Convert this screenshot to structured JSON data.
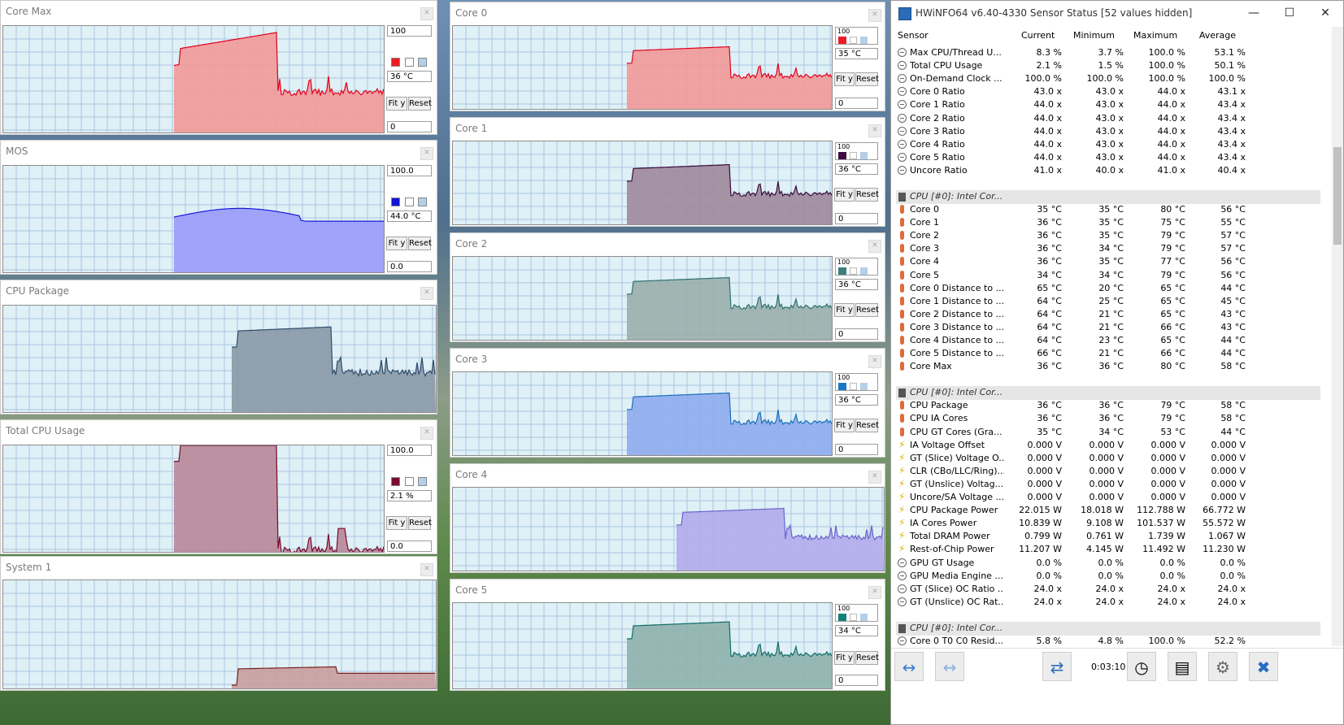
{
  "graphs": [
    {
      "title": "Core Max",
      "max": "100",
      "val": "36 °C",
      "min": "0",
      "color": "#f19a9a",
      "line": "#e0001b",
      "swatch": "#ee1b23"
    },
    {
      "title": "MOS",
      "max": "100.0",
      "val": "44.0 °C",
      "min": "0.0",
      "color": "#9a9cf8",
      "line": "#1b1bd8",
      "swatch": "#1414d8"
    },
    {
      "title": "CPU Package",
      "color": "#8a9aa8",
      "line": "#2f4d6a"
    },
    {
      "title": "Total CPU Usage",
      "max": "100.0",
      "val": "2.1 %",
      "min": "0.0",
      "color": "#b88a9a",
      "line": "#7a0b30",
      "swatch": "#7b0a30"
    },
    {
      "title": "System 1",
      "color": "#c9a0a0",
      "line": "#7a2020"
    },
    {
      "title": "Core 0",
      "max": "100",
      "val": "35 °C",
      "min": "0",
      "color": "#f19a9a",
      "line": "#e0001b",
      "swatch": "#ee1b23"
    },
    {
      "title": "Core 1",
      "max": "100",
      "val": "36 °C",
      "min": "0",
      "color": "#a08a9c",
      "line": "#3a0b3c",
      "swatch": "#3e0b40"
    },
    {
      "title": "Core 2",
      "max": "100",
      "val": "36 °C",
      "min": "0",
      "color": "#9bb0ad",
      "line": "#2d7070",
      "swatch": "#3a7f7d"
    },
    {
      "title": "Core 3",
      "max": "100",
      "val": "36 °C",
      "min": "0",
      "color": "#8fadee",
      "line": "#1670b8",
      "swatch": "#1d78c4"
    },
    {
      "title": "Core 4",
      "color": "#b2acec",
      "line": "#6a64c8"
    },
    {
      "title": "Core 5",
      "max": "100",
      "val": "34 °C",
      "min": "0",
      "color": "#8fb3ae",
      "line": "#0f6e66",
      "swatch": "#148077"
    }
  ],
  "buttons": {
    "fit": "Fit y",
    "reset": "Reset"
  },
  "hw": {
    "title": "HWiNFO64 v6.40-4330 Sensor Status [52 values hidden]",
    "minimize": "—",
    "maximize": "☐",
    "close": "✕",
    "headers": [
      "Sensor",
      "Current",
      "Minimum",
      "Maximum",
      "Average"
    ],
    "rows": [
      {
        "t": "r",
        "i": "c",
        "n": "Max CPU/Thread U...",
        "v": [
          "8.3 %",
          "3.7 %",
          "100.0 %",
          "53.1 %"
        ]
      },
      {
        "t": "r",
        "i": "c",
        "n": "Total CPU Usage",
        "v": [
          "2.1 %",
          "1.5 %",
          "100.0 %",
          "50.1 %"
        ]
      },
      {
        "t": "r",
        "i": "c",
        "n": "On-Demand Clock ...",
        "v": [
          "100.0 %",
          "100.0 %",
          "100.0 %",
          "100.0 %"
        ]
      },
      {
        "t": "r",
        "i": "c",
        "n": "Core 0 Ratio",
        "v": [
          "43.0 x",
          "43.0 x",
          "44.0 x",
          "43.1 x"
        ]
      },
      {
        "t": "r",
        "i": "c",
        "n": "Core 1 Ratio",
        "v": [
          "44.0 x",
          "43.0 x",
          "44.0 x",
          "43.4 x"
        ]
      },
      {
        "t": "r",
        "i": "c",
        "n": "Core 2 Ratio",
        "v": [
          "44.0 x",
          "43.0 x",
          "44.0 x",
          "43.4 x"
        ]
      },
      {
        "t": "r",
        "i": "c",
        "n": "Core 3 Ratio",
        "v": [
          "44.0 x",
          "43.0 x",
          "44.0 x",
          "43.4 x"
        ]
      },
      {
        "t": "r",
        "i": "c",
        "n": "Core 4 Ratio",
        "v": [
          "44.0 x",
          "43.0 x",
          "44.0 x",
          "43.4 x"
        ]
      },
      {
        "t": "r",
        "i": "c",
        "n": "Core 5 Ratio",
        "v": [
          "44.0 x",
          "43.0 x",
          "44.0 x",
          "43.4 x"
        ]
      },
      {
        "t": "r",
        "i": "c",
        "n": "Uncore Ratio",
        "v": [
          "41.0 x",
          "40.0 x",
          "41.0 x",
          "40.4 x"
        ]
      },
      {
        "t": "s"
      },
      {
        "t": "g",
        "n": "CPU [#0]: Intel Cor..."
      },
      {
        "t": "r",
        "i": "t",
        "n": "Core 0",
        "v": [
          "35 °C",
          "35 °C",
          "80 °C",
          "56 °C"
        ]
      },
      {
        "t": "r",
        "i": "t",
        "n": "Core 1",
        "v": [
          "36 °C",
          "35 °C",
          "75 °C",
          "55 °C"
        ]
      },
      {
        "t": "r",
        "i": "t",
        "n": "Core 2",
        "v": [
          "36 °C",
          "35 °C",
          "79 °C",
          "57 °C"
        ]
      },
      {
        "t": "r",
        "i": "t",
        "n": "Core 3",
        "v": [
          "36 °C",
          "34 °C",
          "79 °C",
          "57 °C"
        ]
      },
      {
        "t": "r",
        "i": "t",
        "n": "Core 4",
        "v": [
          "36 °C",
          "35 °C",
          "77 °C",
          "56 °C"
        ]
      },
      {
        "t": "r",
        "i": "t",
        "n": "Core 5",
        "v": [
          "34 °C",
          "34 °C",
          "79 °C",
          "56 °C"
        ]
      },
      {
        "t": "r",
        "i": "t",
        "n": "Core 0 Distance to ...",
        "v": [
          "65 °C",
          "20 °C",
          "65 °C",
          "44 °C"
        ]
      },
      {
        "t": "r",
        "i": "t",
        "n": "Core 1 Distance to ...",
        "v": [
          "64 °C",
          "25 °C",
          "65 °C",
          "45 °C"
        ]
      },
      {
        "t": "r",
        "i": "t",
        "n": "Core 2 Distance to ...",
        "v": [
          "64 °C",
          "21 °C",
          "65 °C",
          "43 °C"
        ]
      },
      {
        "t": "r",
        "i": "t",
        "n": "Core 3 Distance to ...",
        "v": [
          "64 °C",
          "21 °C",
          "66 °C",
          "43 °C"
        ]
      },
      {
        "t": "r",
        "i": "t",
        "n": "Core 4 Distance to ...",
        "v": [
          "64 °C",
          "23 °C",
          "65 °C",
          "44 °C"
        ]
      },
      {
        "t": "r",
        "i": "t",
        "n": "Core 5 Distance to ...",
        "v": [
          "66 °C",
          "21 °C",
          "66 °C",
          "44 °C"
        ]
      },
      {
        "t": "r",
        "i": "t",
        "n": "Core Max",
        "v": [
          "36 °C",
          "36 °C",
          "80 °C",
          "58 °C"
        ]
      },
      {
        "t": "s"
      },
      {
        "t": "g",
        "n": "CPU [#0]: Intel Cor..."
      },
      {
        "t": "r",
        "i": "t",
        "n": "CPU Package",
        "v": [
          "36 °C",
          "36 °C",
          "79 °C",
          "58 °C"
        ]
      },
      {
        "t": "r",
        "i": "t",
        "n": "CPU IA Cores",
        "v": [
          "36 °C",
          "36 °C",
          "79 °C",
          "58 °C"
        ]
      },
      {
        "t": "r",
        "i": "t",
        "n": "CPU GT Cores (Gra...",
        "v": [
          "35 °C",
          "34 °C",
          "53 °C",
          "44 °C"
        ]
      },
      {
        "t": "r",
        "i": "b",
        "n": "IA Voltage Offset",
        "v": [
          "0.000 V",
          "0.000 V",
          "0.000 V",
          "0.000 V"
        ]
      },
      {
        "t": "r",
        "i": "b",
        "n": "GT (Slice) Voltage O...",
        "v": [
          "0.000 V",
          "0.000 V",
          "0.000 V",
          "0.000 V"
        ]
      },
      {
        "t": "r",
        "i": "b",
        "n": "CLR (CBo/LLC/Ring)...",
        "v": [
          "0.000 V",
          "0.000 V",
          "0.000 V",
          "0.000 V"
        ]
      },
      {
        "t": "r",
        "i": "b",
        "n": "GT (Unslice) Voltag...",
        "v": [
          "0.000 V",
          "0.000 V",
          "0.000 V",
          "0.000 V"
        ]
      },
      {
        "t": "r",
        "i": "b",
        "n": "Uncore/SA Voltage ...",
        "v": [
          "0.000 V",
          "0.000 V",
          "0.000 V",
          "0.000 V"
        ]
      },
      {
        "t": "r",
        "i": "b",
        "n": "CPU Package Power",
        "v": [
          "22.015 W",
          "18.018 W",
          "112.788 W",
          "66.772 W"
        ]
      },
      {
        "t": "r",
        "i": "b",
        "n": "IA Cores Power",
        "v": [
          "10.839 W",
          "9.108 W",
          "101.537 W",
          "55.572 W"
        ]
      },
      {
        "t": "r",
        "i": "b",
        "n": "Total DRAM Power",
        "v": [
          "0.799 W",
          "0.761 W",
          "1.739 W",
          "1.067 W"
        ]
      },
      {
        "t": "r",
        "i": "b",
        "n": "Rest-of-Chip Power",
        "v": [
          "11.207 W",
          "4.145 W",
          "11.492 W",
          "11.230 W"
        ]
      },
      {
        "t": "r",
        "i": "c",
        "n": "GPU GT Usage",
        "v": [
          "0.0 %",
          "0.0 %",
          "0.0 %",
          "0.0 %"
        ]
      },
      {
        "t": "r",
        "i": "c",
        "n": "GPU Media Engine ...",
        "v": [
          "0.0 %",
          "0.0 %",
          "0.0 %",
          "0.0 %"
        ]
      },
      {
        "t": "r",
        "i": "c",
        "n": "GT (Slice) OC Ratio ...",
        "v": [
          "24.0 x",
          "24.0 x",
          "24.0 x",
          "24.0 x"
        ]
      },
      {
        "t": "r",
        "i": "c",
        "n": "GT (Unslice) OC Rat...",
        "v": [
          "24.0 x",
          "24.0 x",
          "24.0 x",
          "24.0 x"
        ]
      },
      {
        "t": "s"
      },
      {
        "t": "g",
        "n": "CPU [#0]: Intel Cor..."
      },
      {
        "t": "r",
        "i": "c",
        "n": "Core 0 T0 C0 Resid...",
        "v": [
          "5.8 %",
          "4.8 %",
          "100.0 %",
          "52.2 %"
        ]
      }
    ],
    "toolbar": {
      "timer": "0:03:10",
      "nav_left": "↔",
      "nav_right": "↔",
      "network": "⇄",
      "clock": "◷",
      "report": "▤",
      "settings": "⚙",
      "close": "✖"
    }
  }
}
